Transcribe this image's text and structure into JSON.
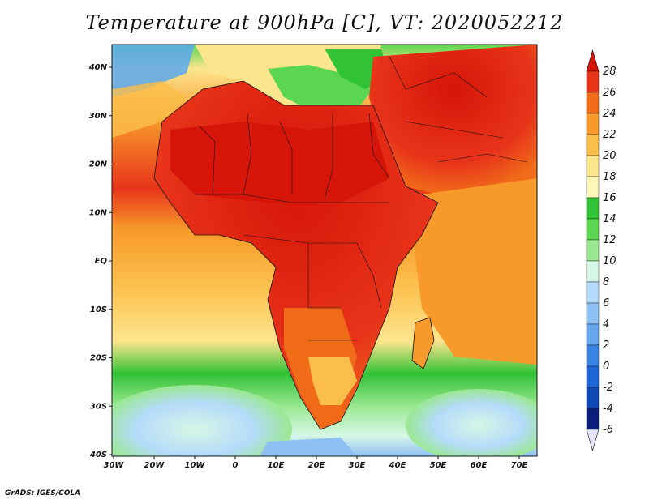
{
  "title": "Temperature at 900hPa [C], VT: 2020052212",
  "credit": "GrADS: IGES/COLA",
  "lat_ticks": [
    "40N",
    "30N",
    "20N",
    "10N",
    "EQ",
    "10S",
    "20S",
    "30S",
    "40S"
  ],
  "lon_ticks": [
    "30W",
    "20W",
    "10W",
    "0",
    "10E",
    "20E",
    "30E",
    "40E",
    "50E",
    "60E",
    "70E"
  ],
  "colorbar": {
    "labels": [
      "28",
      "26",
      "24",
      "22",
      "20",
      "18",
      "16",
      "14",
      "12",
      "10",
      "8",
      "6",
      "4",
      "2",
      "0",
      "-2",
      "-4",
      "-6"
    ],
    "colors": [
      "#d51508",
      "#e8341a",
      "#f06c19",
      "#f79a2b",
      "#fbbe4a",
      "#fde58d",
      "#fdf7b9",
      "#31c236",
      "#5cd652",
      "#9ae892",
      "#d6f7e5",
      "#b5dbfb",
      "#8fc0f4",
      "#67a5ec",
      "#3a83e3",
      "#2065d6",
      "#0f48b6",
      "#0a1f7a",
      "#e6e6fa"
    ],
    "under_color": "#e6e6fa"
  },
  "map": {
    "ocean_gradient": [
      "#5aa8ee",
      "#a7e0a0",
      "#fbbe4a",
      "#f06c19",
      "#d51508"
    ],
    "land_hot": "#d51508",
    "land_warm": "#f06c19",
    "mediterranean": "#5cd652",
    "south_atlantic_cold": "#b5dbfb"
  }
}
